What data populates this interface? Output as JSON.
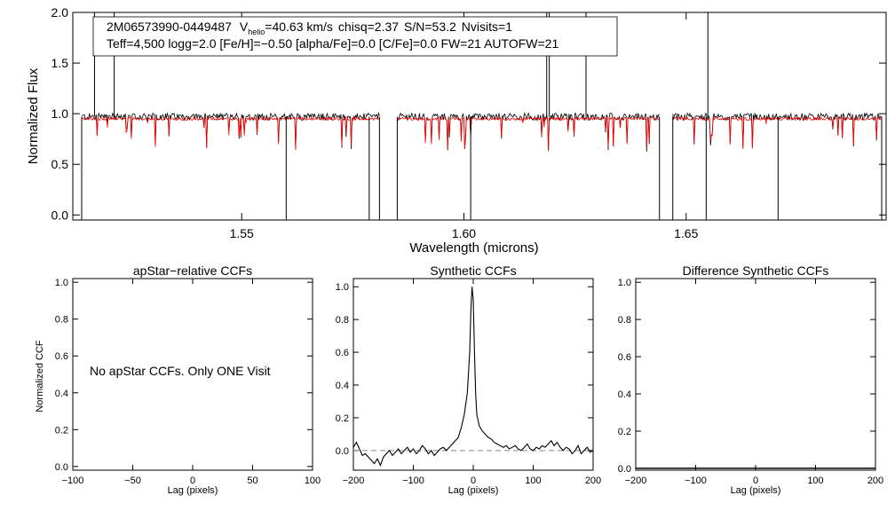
{
  "chart_data": [
    {
      "type": "line",
      "title": "",
      "xlabel": "Wavelength (microns)",
      "ylabel": "Normalized Flux",
      "xlim": [
        1.512,
        1.695
      ],
      "ylim": [
        -0.05,
        2.0
      ],
      "xticks": [
        {
          "value": 1.55,
          "label": "1.55"
        },
        {
          "value": 1.6,
          "label": "1.60"
        },
        {
          "value": 1.65,
          "label": "1.65"
        }
      ],
      "yticks": [
        {
          "value": 0.0,
          "label": "0.0"
        },
        {
          "value": 0.5,
          "label": "0.5"
        },
        {
          "value": 1.0,
          "label": "1.0"
        },
        {
          "value": 1.5,
          "label": "1.5"
        },
        {
          "value": 2.0,
          "label": "2.0"
        }
      ],
      "chips": [
        [
          1.514,
          1.581
        ],
        [
          1.585,
          1.644
        ],
        [
          1.647,
          1.694
        ]
      ],
      "series": [
        {
          "name": "observed spectrum",
          "color": "#000000",
          "baseline": 0.97
        },
        {
          "name": "synthetic model",
          "color": "#ff0000",
          "baseline": 0.95
        }
      ],
      "info": {
        "star_id": "2M06573990-0449487",
        "v_label": "V",
        "v_sub": "helio",
        "v_value": "=40.63 km/s",
        "chisq": "chisq=2.37",
        "snr": "S/N=53.2",
        "nvisits": "Nvisits=1",
        "line2": "Teff=4,500 logg=2.0 [Fe/H]=−0.50 [alpha/Fe]=0.0 [C/Fe]=0.0 FW=21 AUTOFW=21"
      }
    },
    {
      "type": "line",
      "title": "apStar−relative CCFs",
      "xlabel": "Lag (pixels)",
      "ylabel": "Normalized CCF",
      "xlim": [
        -100,
        100
      ],
      "ylim": [
        -0.02,
        1.02
      ],
      "xticks": [
        {
          "value": -100,
          "label": "−100"
        },
        {
          "value": -50,
          "label": "−50"
        },
        {
          "value": 0,
          "label": "0"
        },
        {
          "value": 50,
          "label": "50"
        },
        {
          "value": 100,
          "label": "100"
        }
      ],
      "yticks": [
        {
          "value": 0.0,
          "label": "0.0"
        },
        {
          "value": 0.2,
          "label": "0.2"
        },
        {
          "value": 0.4,
          "label": "0.4"
        },
        {
          "value": 0.6,
          "label": "0.6"
        },
        {
          "value": 0.8,
          "label": "0.8"
        },
        {
          "value": 1.0,
          "label": "1.0"
        }
      ],
      "note": "No apStar CCFs.  Only ONE Visit",
      "series": []
    },
    {
      "type": "line",
      "title": "Synthetic CCFs",
      "xlabel": "Lag (pixels)",
      "ylabel": "",
      "xlim": [
        -200,
        200
      ],
      "ylim": [
        -0.12,
        1.05
      ],
      "xticks": [
        {
          "value": -200,
          "label": "−200"
        },
        {
          "value": -100,
          "label": "−100"
        },
        {
          "value": 0,
          "label": "0"
        },
        {
          "value": 100,
          "label": "100"
        },
        {
          "value": 200,
          "label": "200"
        }
      ],
      "yticks": [
        {
          "value": 0.0,
          "label": "0.0"
        },
        {
          "value": 0.2,
          "label": "0.2"
        },
        {
          "value": 0.4,
          "label": "0.4"
        },
        {
          "value": 0.6,
          "label": "0.6"
        },
        {
          "value": 0.8,
          "label": "0.8"
        },
        {
          "value": 1.0,
          "label": "1.0"
        }
      ],
      "zero_line": 0.0,
      "series": [
        {
          "name": "synthetic CCF",
          "color": "#000000",
          "x": [
            -200,
            -195,
            -190,
            -185,
            -180,
            -175,
            -170,
            -165,
            -160,
            -155,
            -150,
            -145,
            -140,
            -135,
            -130,
            -125,
            -120,
            -115,
            -110,
            -105,
            -100,
            -95,
            -90,
            -85,
            -80,
            -75,
            -70,
            -65,
            -60,
            -55,
            -50,
            -45,
            -40,
            -35,
            -30,
            -25,
            -20,
            -15,
            -10,
            -6,
            -4,
            -2,
            0,
            2,
            4,
            6,
            10,
            15,
            20,
            25,
            30,
            35,
            40,
            45,
            50,
            55,
            60,
            65,
            70,
            75,
            80,
            85,
            90,
            95,
            100,
            105,
            110,
            115,
            120,
            125,
            130,
            135,
            140,
            145,
            150,
            155,
            160,
            165,
            170,
            175,
            180,
            185,
            190,
            195,
            200
          ],
          "y": [
            0.02,
            0.05,
            0.01,
            -0.03,
            -0.02,
            -0.04,
            -0.06,
            -0.08,
            -0.05,
            -0.09,
            -0.04,
            -0.02,
            0.0,
            -0.03,
            -0.01,
            0.01,
            -0.02,
            0.0,
            0.02,
            -0.01,
            0.01,
            -0.02,
            0.0,
            0.03,
            0.01,
            -0.02,
            0.0,
            -0.03,
            -0.01,
            0.01,
            0.02,
            0.0,
            0.02,
            0.04,
            0.06,
            0.08,
            0.14,
            0.22,
            0.35,
            0.6,
            0.85,
            1.0,
            0.92,
            0.6,
            0.35,
            0.22,
            0.15,
            0.12,
            0.1,
            0.08,
            0.07,
            0.05,
            0.04,
            0.03,
            0.02,
            0.03,
            0.01,
            0.02,
            0.03,
            0.01,
            0.0,
            0.02,
            0.04,
            0.01,
            0.0,
            0.02,
            0.01,
            0.03,
            0.02,
            0.04,
            0.06,
            0.03,
            0.05,
            0.02,
            0.0,
            0.02,
            0.01,
            -0.02,
            0.0,
            0.03,
            -0.02,
            0.0,
            0.02,
            -0.01,
            0.0
          ]
        }
      ]
    },
    {
      "type": "line",
      "title": "Difference Synthetic CCFs",
      "xlabel": "Lag (pixels)",
      "ylabel": "",
      "xlim": [
        -200,
        200
      ],
      "ylim": [
        -0.01,
        1.02
      ],
      "xticks": [
        {
          "value": -200,
          "label": "−200"
        },
        {
          "value": -100,
          "label": "−100"
        },
        {
          "value": 0,
          "label": "0"
        },
        {
          "value": 100,
          "label": "100"
        },
        {
          "value": 200,
          "label": "200"
        }
      ],
      "yticks": [
        {
          "value": 0.0,
          "label": "0.0"
        },
        {
          "value": 0.2,
          "label": "0.2"
        },
        {
          "value": 0.4,
          "label": "0.4"
        },
        {
          "value": 0.6,
          "label": "0.6"
        },
        {
          "value": 0.8,
          "label": "0.8"
        },
        {
          "value": 1.0,
          "label": "1.0"
        }
      ],
      "series": [
        {
          "name": "difference CCF",
          "color": "#000000",
          "x": [
            -200,
            200
          ],
          "y": [
            0.0,
            0.0
          ]
        }
      ]
    }
  ]
}
